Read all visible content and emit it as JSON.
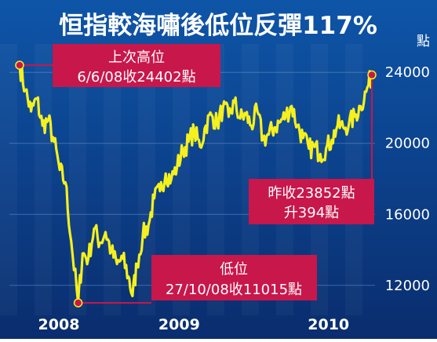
{
  "chart_data": {
    "type": "line",
    "title": "恒指較海嘯後低位反彈117%",
    "ylabel": "點",
    "y_ticks": [
      12000,
      16000,
      20000,
      24000
    ],
    "ylim": [
      10400,
      25600
    ],
    "x_labels": [
      "2008",
      "2009",
      "2010"
    ],
    "series": [
      {
        "x": [
          "2008-06-06",
          "2008-06-20",
          "2008-07-04",
          "2008-07-18",
          "2008-08-01",
          "2008-08-15",
          "2008-08-29",
          "2008-09-12",
          "2008-09-26",
          "2008-10-10",
          "2008-10-27",
          "2008-11-07",
          "2008-11-21",
          "2008-12-05",
          "2008-12-19",
          "2009-01-02",
          "2009-01-16",
          "2009-01-30",
          "2009-02-13",
          "2009-02-27",
          "2009-03-09",
          "2009-03-20",
          "2009-04-03",
          "2009-04-17",
          "2009-05-01",
          "2009-05-15",
          "2009-05-29",
          "2009-06-12",
          "2009-06-26",
          "2009-07-10",
          "2009-07-24",
          "2009-08-07",
          "2009-08-21",
          "2009-09-04",
          "2009-09-18",
          "2009-10-02",
          "2009-10-16",
          "2009-10-30",
          "2009-11-13",
          "2009-11-27",
          "2009-12-11",
          "2009-12-24",
          "2010-01-08",
          "2010-01-22",
          "2010-02-05",
          "2010-02-19",
          "2010-03-05",
          "2010-03-19",
          "2010-04-02",
          "2010-04-16",
          "2010-04-30",
          "2010-05-14",
          "2010-05-28",
          "2010-06-11",
          "2010-06-25",
          "2010-07-09",
          "2010-07-23",
          "2010-08-06",
          "2010-08-20",
          "2010-09-03",
          "2010-09-17",
          "2010-10-01",
          "2010-10-15"
        ],
        "values": [
          24402,
          23000,
          21800,
          22500,
          21000,
          21300,
          20100,
          18500,
          17800,
          14500,
          11015,
          13800,
          13500,
          15200,
          14400,
          15000,
          13900,
          13200,
          13500,
          12500,
          11400,
          13200,
          14800,
          15400,
          16900,
          17300,
          18300,
          18000,
          18700,
          19600,
          20100,
          20700,
          19800,
          21000,
          21600,
          21100,
          22000,
          21500,
          22300,
          21400,
          21600,
          21000,
          21800,
          20200,
          20500,
          20900,
          21200,
          21600,
          22100,
          21000,
          20300,
          19700,
          19800,
          19400,
          19700,
          20200,
          21000,
          20900,
          21100,
          21500,
          22100,
          22900,
          23852
        ]
      }
    ]
  },
  "labels": {
    "high_line1": "上次高位",
    "high_line2": "6/6/08收24402點",
    "low_line1": "低位",
    "low_line2": "27/10/08收11015點",
    "last_line1": "昨收23852點",
    "last_line2": "升394點"
  },
  "colors": {
    "line": "#F5F01E",
    "accent": "#C8174B",
    "bg_top": "#0E55A8",
    "bg_bottom": "#0A2D6E",
    "text": "#FFFFFF"
  }
}
